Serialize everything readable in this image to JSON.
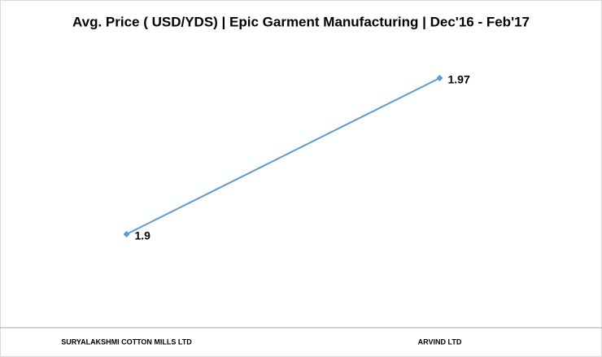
{
  "chart_data": {
    "type": "line",
    "title": "Avg. Price ( USD/YDS) | Epic Garment Manufacturing  | Dec'16 - Feb'17",
    "categories": [
      "SURYALAKSHMI COTTON  MILLS LTD",
      "ARVIND LTD"
    ],
    "values": [
      1.9,
      1.97
    ],
    "color": "#5b9bd5"
  }
}
